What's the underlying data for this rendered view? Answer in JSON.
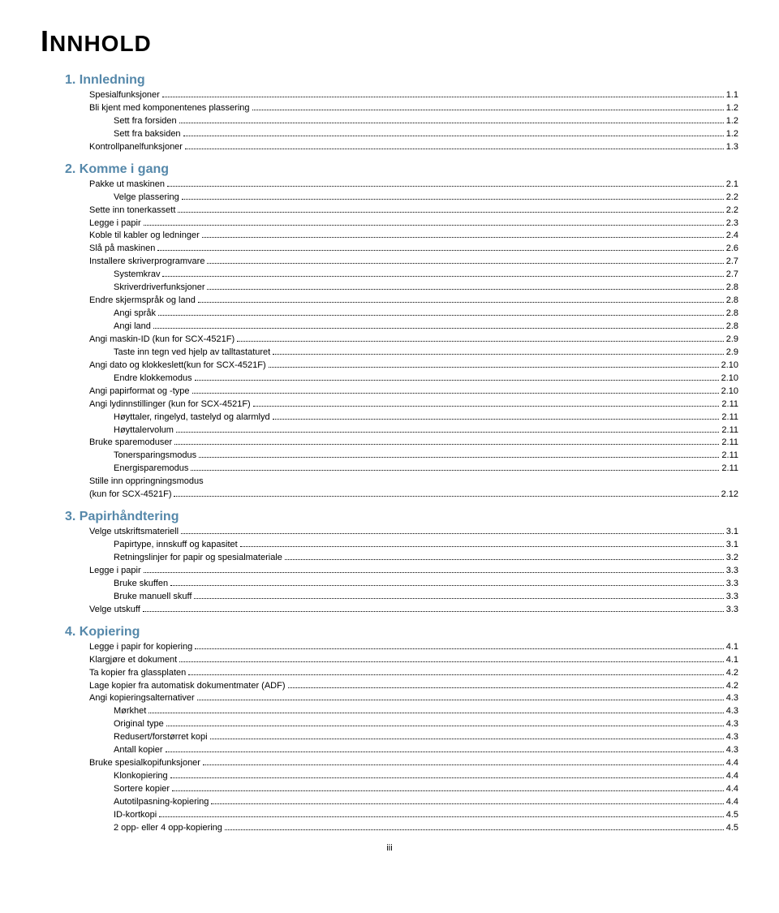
{
  "title": {
    "first": "I",
    "rest": "NNHOLD"
  },
  "chapters": [
    {
      "heading": "1. Innledning",
      "items": [
        {
          "label": "Spesialfunksjoner",
          "page": "1.1",
          "sub": false
        },
        {
          "label": "Bli kjent med komponentenes plassering",
          "page": "1.2",
          "sub": false
        },
        {
          "label": "Sett fra forsiden",
          "page": "1.2",
          "sub": true
        },
        {
          "label": "Sett fra baksiden",
          "page": "1.2",
          "sub": true
        },
        {
          "label": "Kontrollpanelfunksjoner",
          "page": "1.3",
          "sub": false
        }
      ]
    },
    {
      "heading": "2. Komme i gang",
      "items": [
        {
          "label": "Pakke ut maskinen",
          "page": "2.1",
          "sub": false
        },
        {
          "label": "Velge plassering",
          "page": "2.2",
          "sub": true
        },
        {
          "label": "Sette inn tonerkassett",
          "page": "2.2",
          "sub": false
        },
        {
          "label": "Legge i papir",
          "page": "2.3",
          "sub": false
        },
        {
          "label": "Koble til kabler og ledninger",
          "page": "2.4",
          "sub": false
        },
        {
          "label": "Slå på maskinen",
          "page": "2.6",
          "sub": false
        },
        {
          "label": "Installere skriverprogramvare",
          "page": "2.7",
          "sub": false
        },
        {
          "label": "Systemkrav",
          "page": "2.7",
          "sub": true
        },
        {
          "label": "Skriverdriverfunksjoner",
          "page": "2.8",
          "sub": true
        },
        {
          "label": "Endre skjermspråk og land",
          "page": "2.8",
          "sub": false
        },
        {
          "label": "Angi språk",
          "page": "2.8",
          "sub": true
        },
        {
          "label": "Angi land",
          "page": "2.8",
          "sub": true
        },
        {
          "label": "Angi maskin-ID (kun for SCX-4521F)",
          "page": "2.9",
          "sub": false
        },
        {
          "label": "Taste inn tegn ved hjelp av talltastaturet",
          "page": "2.9",
          "sub": true
        },
        {
          "label": "Angi dato og klokkeslett(kun for SCX-4521F)",
          "page": "2.10",
          "sub": false
        },
        {
          "label": "Endre klokkemodus",
          "page": "2.10",
          "sub": true
        },
        {
          "label": "Angi papirformat og -type",
          "page": "2.10",
          "sub": false
        },
        {
          "label": "Angi lydinnstillinger (kun for SCX-4521F)",
          "page": "2.11",
          "sub": false
        },
        {
          "label": "Høyttaler, ringelyd, tastelyd og alarmlyd",
          "page": "2.11",
          "sub": true
        },
        {
          "label": "Høyttalervolum",
          "page": "2.11",
          "sub": true
        },
        {
          "label": "Bruke sparemoduser",
          "page": "2.11",
          "sub": false
        },
        {
          "label": "Tonersparingsmodus",
          "page": "2.11",
          "sub": true
        },
        {
          "label": "Energisparemodus",
          "page": "2.11",
          "sub": true
        },
        {
          "label": "Stille inn oppringningsmodus\n(kun for SCX-4521F)",
          "page": "2.12",
          "sub": false,
          "multiline": true
        }
      ]
    },
    {
      "heading": "3. Papirhåndtering",
      "items": [
        {
          "label": "Velge utskriftsmateriell",
          "page": "3.1",
          "sub": false
        },
        {
          "label": "Papirtype, innskuff og kapasitet",
          "page": "3.1",
          "sub": true
        },
        {
          "label": "Retningslinjer for papir og spesialmateriale",
          "page": "3.2",
          "sub": true
        },
        {
          "label": "Legge i papir",
          "page": "3.3",
          "sub": false
        },
        {
          "label": "Bruke skuffen",
          "page": "3.3",
          "sub": true
        },
        {
          "label": "Bruke manuell skuff",
          "page": "3.3",
          "sub": true
        },
        {
          "label": "Velge utskuff",
          "page": "3.3",
          "sub": false
        }
      ]
    },
    {
      "heading": "4. Kopiering",
      "items": [
        {
          "label": "Legge i papir for kopiering",
          "page": "4.1",
          "sub": false
        },
        {
          "label": "Klargjøre et dokument",
          "page": "4.1",
          "sub": false
        },
        {
          "label": "Ta kopier fra glassplaten",
          "page": "4.2",
          "sub": false
        },
        {
          "label": "Lage kopier fra automatisk dokumentmater (ADF)",
          "page": "4.2",
          "sub": false
        },
        {
          "label": "Angi kopieringsalternativer",
          "page": "4.3",
          "sub": false
        },
        {
          "label": "Mørkhet",
          "page": "4.3",
          "sub": true
        },
        {
          "label": "Original type",
          "page": "4.3",
          "sub": true
        },
        {
          "label": "Redusert/forstørret kopi",
          "page": "4.3",
          "sub": true
        },
        {
          "label": "Antall kopier",
          "page": "4.3",
          "sub": true
        },
        {
          "label": "Bruke spesialkopifunksjoner",
          "page": "4.4",
          "sub": false
        },
        {
          "label": "Klonkopiering",
          "page": "4.4",
          "sub": true
        },
        {
          "label": "Sortere kopier",
          "page": "4.4",
          "sub": true
        },
        {
          "label": "Autotilpasning-kopiering",
          "page": "4.4",
          "sub": true
        },
        {
          "label": "ID-kortkopi",
          "page": "4.5",
          "sub": true
        },
        {
          "label": "2 opp- eller 4 opp-kopiering",
          "page": "4.5",
          "sub": true
        }
      ]
    }
  ],
  "pageNumber": "iii",
  "colors": {
    "chapter": "#5588aa",
    "text": "#000000",
    "bg": "#ffffff"
  }
}
